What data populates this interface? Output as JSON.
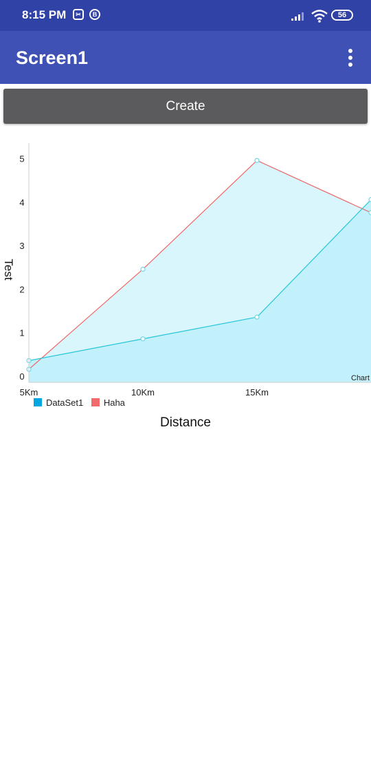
{
  "status_bar": {
    "time": "8:15 PM",
    "icon_1_glyph": "✂",
    "icon_2_glyph": "B",
    "battery": "56"
  },
  "app_bar": {
    "title": "Screen1"
  },
  "create_button": {
    "label": "Create"
  },
  "chart_data": {
    "type": "area",
    "categories": [
      "5Km",
      "10Km",
      "15Km",
      ""
    ],
    "ylim": [
      0,
      5.5
    ],
    "yticks": [
      0,
      1,
      2,
      3,
      4,
      5
    ],
    "xlabel": "Distance",
    "ylabel": "Test",
    "description": "Chart",
    "legend_placement": "bottom-left",
    "grid": false,
    "series": [
      {
        "name": "DataSet1",
        "color": "#00a7e1",
        "line_color": "#26c6da",
        "fill": "#c2f0fb",
        "values": [
          0.5,
          1.0,
          1.5,
          4.2
        ]
      },
      {
        "name": "Haha",
        "color": "#f26b6b",
        "line_color": "#ef6464",
        "fill": "#d9f6fc",
        "values": [
          0.3,
          2.6,
          5.1,
          3.9
        ]
      }
    ]
  }
}
